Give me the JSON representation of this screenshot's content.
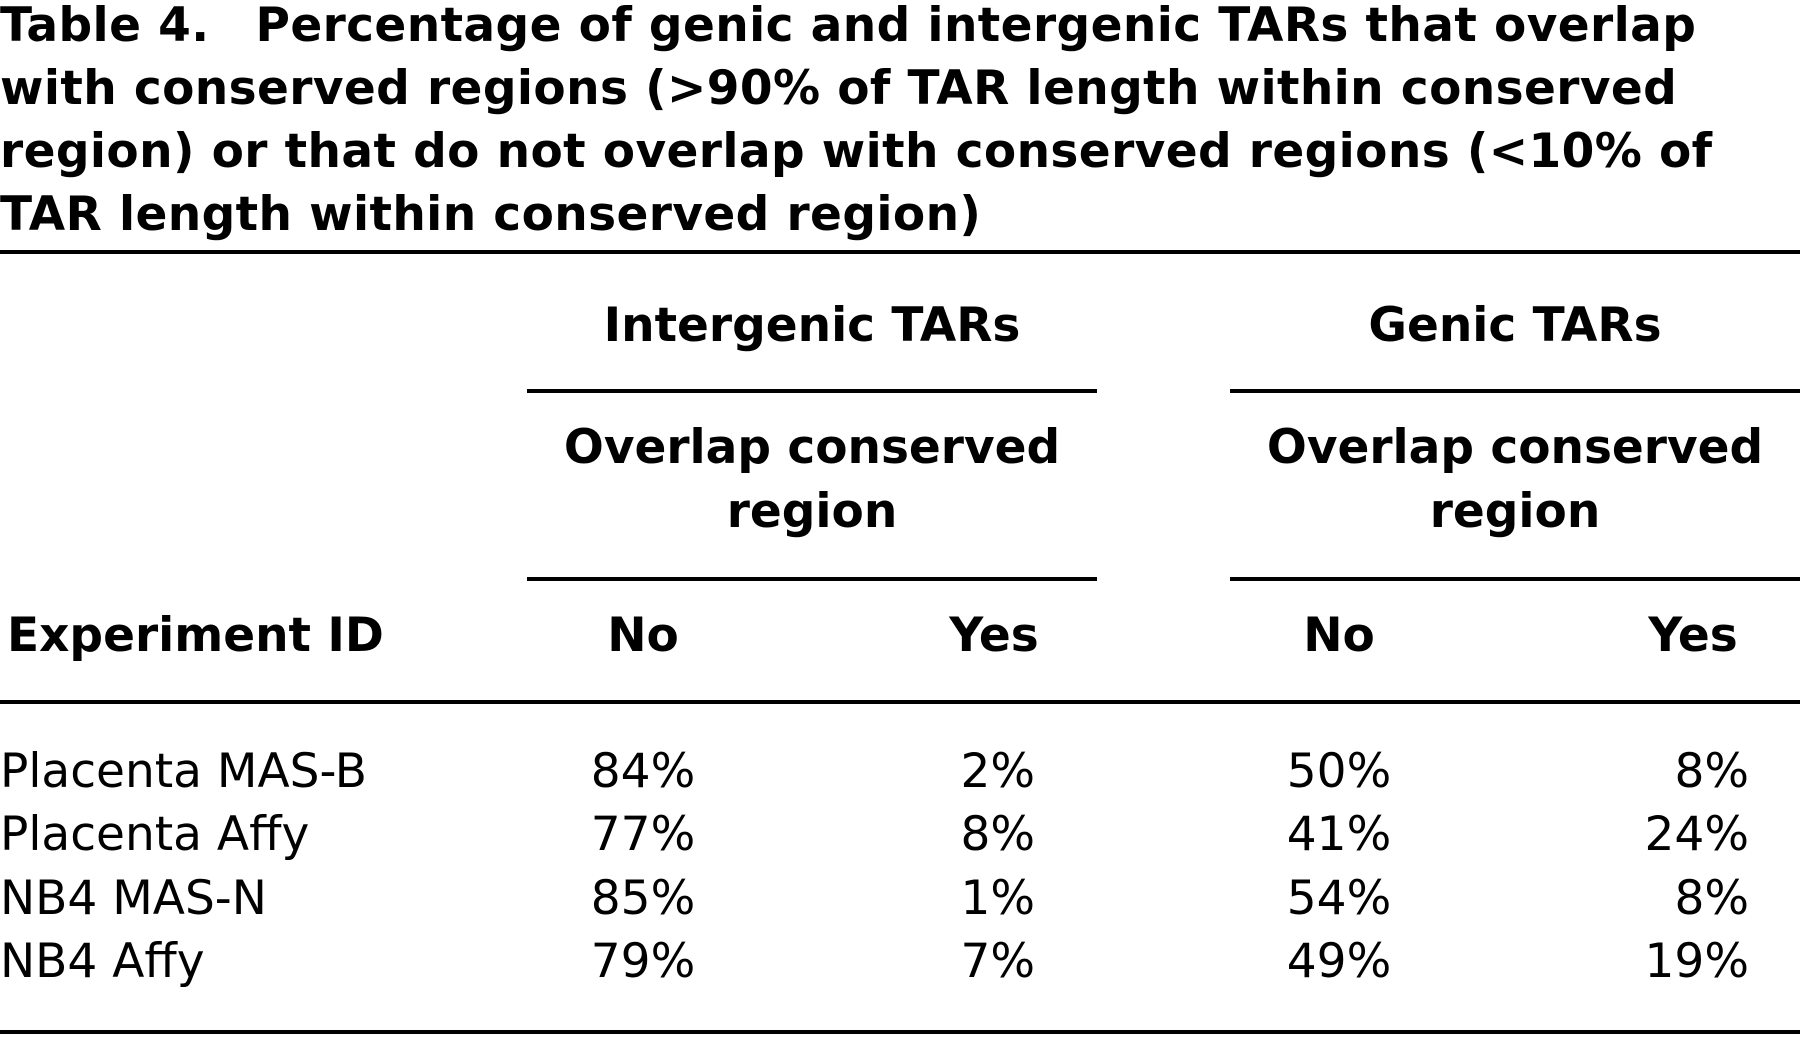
{
  "caption": {
    "label": "Table 4.",
    "text": "Percentage of genic and intergenic TARs that overlap with conserved regions (>90% of TAR length within conserved region) or that do not overlap with conserved regions (<10% of TAR length within conserved region)"
  },
  "table": {
    "group_headers": [
      "Intergenic TARs",
      "Genic TARs"
    ],
    "sub_headers": [
      [
        "Overlap conserved",
        "region"
      ],
      [
        "Overlap conserved",
        "region"
      ]
    ],
    "columns": [
      "Experiment ID",
      "No",
      "Yes",
      "No",
      "Yes"
    ],
    "rows": [
      [
        "Placenta MAS-B",
        "84%",
        "2%",
        "50%",
        "8%"
      ],
      [
        "Placenta Affy",
        "77%",
        "8%",
        "41%",
        "24%"
      ],
      [
        "NB4 MAS-N",
        "85%",
        "1%",
        "54%",
        "8%"
      ],
      [
        "NB4 Affy",
        "79%",
        "7%",
        "49%",
        "19%"
      ]
    ]
  }
}
